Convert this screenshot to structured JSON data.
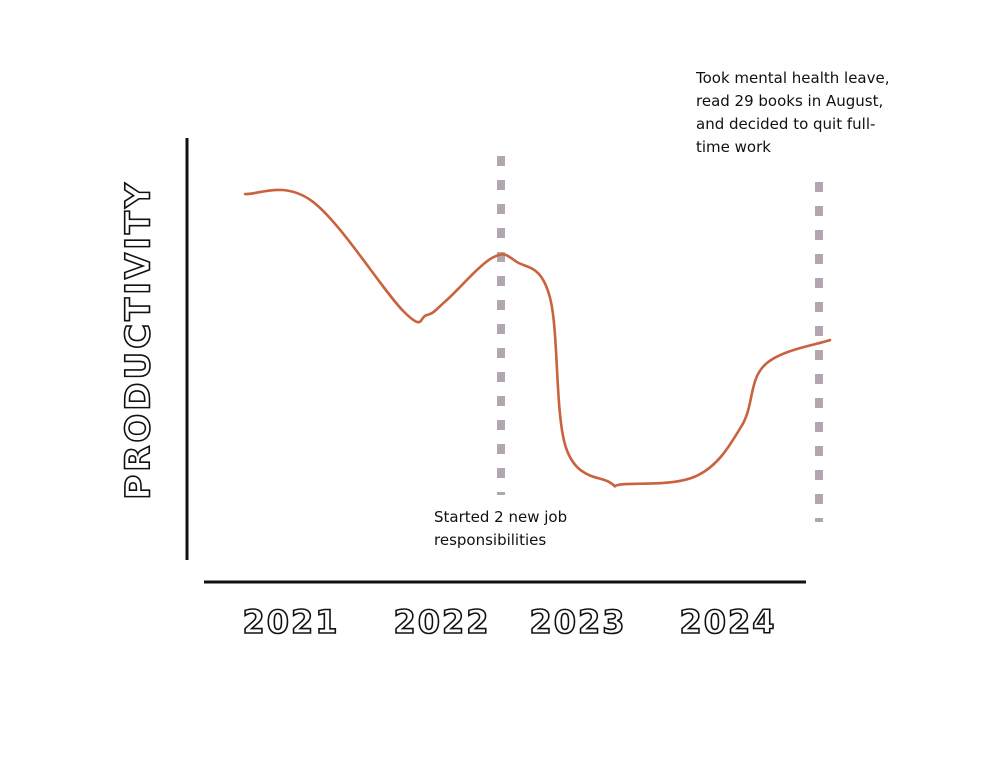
{
  "chart_data": {
    "type": "line",
    "title": "",
    "xlabel": "",
    "ylabel": "PRODUCTIVITY",
    "x_ticks": [
      "2021",
      "2022",
      "2023",
      "2024"
    ],
    "xlim": [
      2020.65,
      2024.55
    ],
    "ylim": [
      0,
      10
    ],
    "grid": false,
    "series": [
      {
        "color": "#c8623f",
        "x": [
          2020.98,
          2021.36,
          2021.88,
          2022.01,
          2022.12,
          2022.38,
          2022.52,
          2022.71,
          2022.8,
          2023.05,
          2023.13,
          2023.55,
          2023.8,
          2023.93,
          2024.3
        ],
        "y": [
          9.1,
          8.9,
          5.8,
          5.7,
          6.1,
          7.3,
          7.2,
          6.2,
          2.0,
          1.0,
          0.95,
          1.2,
          2.6,
          4.3,
          5.0
        ]
      }
    ],
    "markers": [
      {
        "x": 2022.43,
        "style": "dashed-vertical",
        "color": "#b2a7b1",
        "annotation": [
          "Started 2 new job",
          "responsibilities"
        ]
      },
      {
        "x": 2024.24,
        "style": "dashed-vertical",
        "color": "#b2a7b1",
        "annotation": [
          "Took mental health leave,",
          "read 29 books in August,",
          "and decided to quit full-",
          "time work"
        ]
      }
    ]
  }
}
